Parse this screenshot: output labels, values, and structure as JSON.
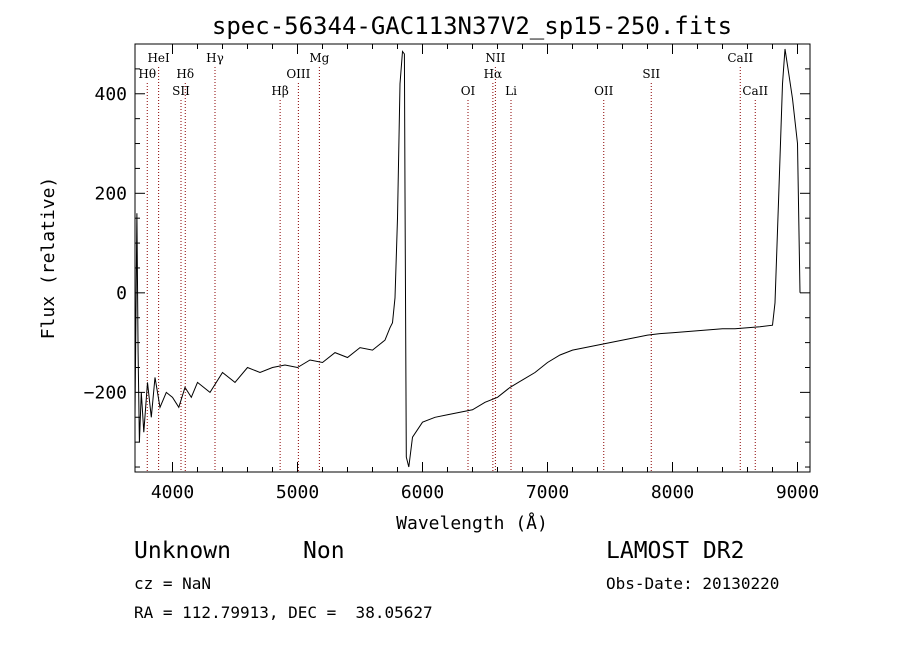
{
  "chart_data": {
    "type": "line",
    "title": "spec-56344-GAC113N37V2_sp15-250.fits",
    "xlabel": "Wavelength (Å)",
    "ylabel": "Flux (relative)",
    "xlim": [
      3700,
      9100
    ],
    "ylim": [
      -360,
      500
    ],
    "xticks": [
      4000,
      5000,
      6000,
      7000,
      8000,
      9000
    ],
    "yticks": [
      -200,
      0,
      200,
      400
    ],
    "grid": false,
    "line_color": "#000000",
    "marker_color": "#8b0000",
    "spectrum": [
      [
        3700,
        -250
      ],
      [
        3715,
        160
      ],
      [
        3725,
        -120
      ],
      [
        3735,
        -300
      ],
      [
        3750,
        -200
      ],
      [
        3770,
        -280
      ],
      [
        3800,
        -180
      ],
      [
        3830,
        -250
      ],
      [
        3860,
        -170
      ],
      [
        3900,
        -230
      ],
      [
        3950,
        -200
      ],
      [
        4000,
        -210
      ],
      [
        4050,
        -230
      ],
      [
        4100,
        -190
      ],
      [
        4150,
        -210
      ],
      [
        4200,
        -180
      ],
      [
        4300,
        -200
      ],
      [
        4400,
        -160
      ],
      [
        4500,
        -180
      ],
      [
        4600,
        -150
      ],
      [
        4700,
        -160
      ],
      [
        4800,
        -150
      ],
      [
        4900,
        -145
      ],
      [
        5000,
        -150
      ],
      [
        5100,
        -135
      ],
      [
        5200,
        -140
      ],
      [
        5300,
        -120
      ],
      [
        5400,
        -130
      ],
      [
        5500,
        -110
      ],
      [
        5600,
        -115
      ],
      [
        5700,
        -95
      ],
      [
        5740,
        -70
      ],
      [
        5760,
        -60
      ],
      [
        5780,
        -10
      ],
      [
        5800,
        150
      ],
      [
        5820,
        420
      ],
      [
        5840,
        485
      ],
      [
        5855,
        480
      ],
      [
        5860,
        200
      ],
      [
        5870,
        -330
      ],
      [
        5890,
        -350
      ],
      [
        5920,
        -290
      ],
      [
        6000,
        -260
      ],
      [
        6100,
        -250
      ],
      [
        6200,
        -245
      ],
      [
        6300,
        -240
      ],
      [
        6400,
        -235
      ],
      [
        6500,
        -220
      ],
      [
        6600,
        -210
      ],
      [
        6700,
        -190
      ],
      [
        6800,
        -175
      ],
      [
        6900,
        -160
      ],
      [
        7000,
        -140
      ],
      [
        7100,
        -125
      ],
      [
        7200,
        -115
      ],
      [
        7300,
        -110
      ],
      [
        7400,
        -105
      ],
      [
        7500,
        -100
      ],
      [
        7600,
        -95
      ],
      [
        7700,
        -90
      ],
      [
        7800,
        -85
      ],
      [
        7900,
        -82
      ],
      [
        8000,
        -80
      ],
      [
        8100,
        -78
      ],
      [
        8200,
        -76
      ],
      [
        8300,
        -74
      ],
      [
        8400,
        -72
      ],
      [
        8500,
        -72
      ],
      [
        8600,
        -70
      ],
      [
        8700,
        -68
      ],
      [
        8800,
        -65
      ],
      [
        8820,
        -20
      ],
      [
        8850,
        200
      ],
      [
        8880,
        420
      ],
      [
        8900,
        490
      ],
      [
        8930,
        440
      ],
      [
        8960,
        390
      ],
      [
        9000,
        300
      ],
      [
        9020,
        0
      ]
    ],
    "lines": [
      {
        "label": "Hθ",
        "wave": 3798,
        "row": 2
      },
      {
        "label": "HeI",
        "wave": 3889,
        "row": 1
      },
      {
        "label": "SII",
        "wave": 4068,
        "row": 3
      },
      {
        "label": "Hδ",
        "wave": 4102,
        "row": 2
      },
      {
        "label": "Hγ",
        "wave": 4340,
        "row": 1
      },
      {
        "label": "Hβ",
        "wave": 4861,
        "row": 3
      },
      {
        "label": "OIII",
        "wave": 5007,
        "row": 2
      },
      {
        "label": "Mg",
        "wave": 5175,
        "row": 1
      },
      {
        "label": "OI",
        "wave": 6364,
        "row": 3
      },
      {
        "label": "NII",
        "wave": 6583,
        "row": 1
      },
      {
        "label": "Hα",
        "wave": 6563,
        "row": 2
      },
      {
        "label": "Li",
        "wave": 6708,
        "row": 3
      },
      {
        "label": "OII",
        "wave": 7450,
        "row": 3
      },
      {
        "label": "SII",
        "wave": 7830,
        "row": 2
      },
      {
        "label": "CaII",
        "wave": 8542,
        "row": 1
      },
      {
        "label": "CaII",
        "wave": 8662,
        "row": 3
      }
    ]
  },
  "info": {
    "class_name": "Unknown",
    "subclass": "Non",
    "survey": "LAMOST DR2",
    "cz": "cz = NaN",
    "obs_date": "Obs-Date: 20130220",
    "radec": "RA = 112.79913, DEC =  38.05627"
  }
}
